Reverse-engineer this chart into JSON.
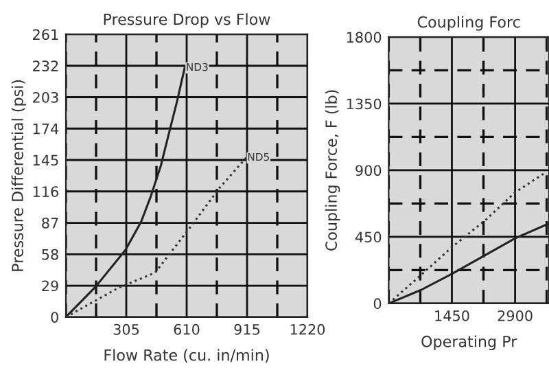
{
  "chart_data": [
    {
      "type": "line",
      "title": "Pressure Drop vs Flow",
      "xlabel": "Flow Rate (cu. in/min)",
      "ylabel": "Pressure Differential (psi)",
      "xlim": [
        0,
        1220
      ],
      "ylim": [
        0,
        261
      ],
      "xticks": [
        {
          "value": 0,
          "label": null
        },
        {
          "value": 152.5,
          "label": null
        },
        305,
        {
          "value": 457.5,
          "label": null
        },
        610,
        {
          "value": 762.5,
          "label": null
        },
        915,
        {
          "value": 1067.5,
          "label": null
        },
        1220
      ],
      "yticks": [
        0,
        29,
        58,
        87,
        116,
        145,
        174,
        203,
        232,
        261
      ],
      "grid": true,
      "series": [
        {
          "name": "ND3",
          "color": "#222222",
          "line_style": "solid",
          "x": [
            0,
            150,
            301,
            380,
            428,
            480,
            521,
            560,
            600
          ],
          "values": [
            0,
            28,
            62,
            88,
            111,
            140,
            170,
            198,
            230
          ]
        },
        {
          "name": "ND5",
          "color": "#333333",
          "line_style": "dotted",
          "x": [
            0,
            266,
            451,
            637,
            775,
            910
          ],
          "values": [
            0,
            27,
            41,
            85,
            119,
            147
          ]
        }
      ]
    },
    {
      "type": "line",
      "title": "Coupling Forc",
      "xlabel": "Operating Pr",
      "ylabel": "Coupling Force, F (lb)",
      "xlim": [
        0,
        3678
      ],
      "ylim": [
        0,
        1800
      ],
      "xticks": [
        {
          "value": 0,
          "label": null
        },
        {
          "value": 725,
          "label": null
        },
        1450,
        {
          "value": 2175,
          "label": null
        },
        2900,
        {
          "value": 3625,
          "label": null
        }
      ],
      "yticks": [
        0,
        {
          "value": 225,
          "label": null
        },
        450,
        {
          "value": 675,
          "label": null
        },
        900,
        {
          "value": 1125,
          "label": null
        },
        1350,
        {
          "value": 1575,
          "label": null
        },
        1800
      ],
      "grid": true,
      "series": [
        {
          "color": "#222222",
          "line_style": "solid",
          "x": [
            0,
            735,
            1450,
            2900,
            3678
          ],
          "values": [
            0,
            90,
            200,
            440,
            540
          ]
        },
        {
          "color": "#333333",
          "line_style": "dotted",
          "x": [
            0,
            735,
            1450,
            2207,
            2900,
            3573
          ],
          "values": [
            0,
            190,
            380,
            560,
            750,
            880
          ]
        }
      ]
    }
  ]
}
